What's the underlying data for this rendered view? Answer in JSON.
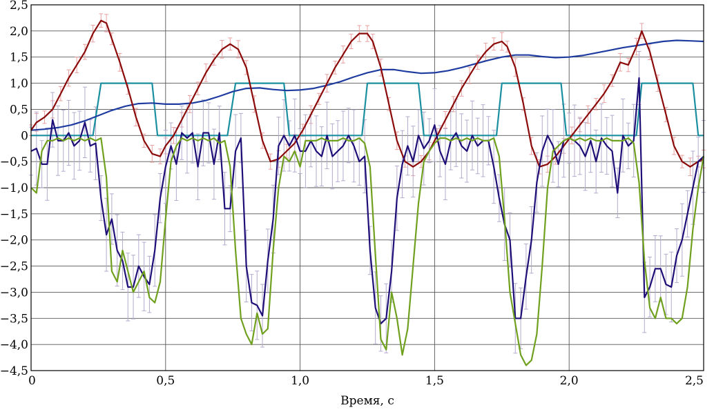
{
  "chart_data": {
    "type": "line",
    "title": "",
    "xlabel": "Время, с",
    "ylabel": "",
    "xlim": [
      0,
      2.5
    ],
    "ylim": [
      -4.5,
      2.5
    ],
    "grid": true,
    "legend": "none",
    "x_ticks": [
      0,
      0.5,
      1.0,
      1.5,
      2.0,
      2.5
    ],
    "x_tick_labels": [
      "0",
      "0,5",
      "1,0",
      "1,5",
      "2,0",
      "2,5"
    ],
    "y_ticks": [
      -4.5,
      -4.0,
      -3.5,
      -3.0,
      -2.5,
      -2.0,
      -1.5,
      -1.0,
      -0.5,
      0,
      0.5,
      1.0,
      1.5,
      2.0,
      2.5
    ],
    "y_tick_labels": [
      "−4,5",
      "−4,0",
      "−3,5",
      "−3,0",
      "−2,5",
      "−2,0",
      "−1,5",
      "−1,0",
      "−0,5",
      "0",
      "0,5",
      "1,0",
      "1,5",
      "2,0",
      "2,5"
    ],
    "series": [
      {
        "color": "#8b0a0a",
        "error_color": "#e8a0a0",
        "error": 0.17,
        "x": [
          0,
          0.02,
          0.05,
          0.08,
          0.11,
          0.14,
          0.17,
          0.2,
          0.23,
          0.26,
          0.28,
          0.3,
          0.33,
          0.36,
          0.39,
          0.42,
          0.45,
          0.48,
          0.5,
          0.53,
          0.56,
          0.59,
          0.62,
          0.65,
          0.68,
          0.71,
          0.74,
          0.77,
          0.8,
          0.83,
          0.86,
          0.89,
          0.92,
          0.95,
          0.98,
          1.01,
          1.04,
          1.07,
          1.1,
          1.13,
          1.16,
          1.19,
          1.22,
          1.25,
          1.27,
          1.3,
          1.33,
          1.36,
          1.39,
          1.42,
          1.45,
          1.48,
          1.51,
          1.54,
          1.57,
          1.6,
          1.63,
          1.66,
          1.69,
          1.72,
          1.75,
          1.77,
          1.8,
          1.83,
          1.86,
          1.89,
          1.92,
          1.95,
          1.98,
          2.01,
          2.04,
          2.07,
          2.1,
          2.13,
          2.16,
          2.19,
          2.22,
          2.25,
          2.27,
          2.3,
          2.33,
          2.36,
          2.39,
          2.42,
          2.45,
          2.48,
          2.5
        ],
        "y": [
          0.1,
          0.25,
          0.35,
          0.5,
          0.8,
          1.1,
          1.35,
          1.6,
          1.95,
          2.2,
          2.15,
          1.85,
          1.4,
          0.9,
          0.35,
          -0.1,
          -0.35,
          -0.4,
          -0.2,
          0.0,
          0.3,
          0.6,
          0.9,
          1.2,
          1.45,
          1.65,
          1.75,
          1.65,
          1.3,
          0.6,
          -0.1,
          -0.5,
          -0.45,
          -0.3,
          -0.15,
          0.1,
          0.4,
          0.7,
          1.0,
          1.3,
          1.55,
          1.8,
          1.95,
          1.95,
          1.8,
          1.3,
          0.6,
          -0.1,
          -0.5,
          -0.6,
          -0.5,
          -0.3,
          0.0,
          0.3,
          0.6,
          0.9,
          1.15,
          1.4,
          1.6,
          1.75,
          1.8,
          1.7,
          1.3,
          0.6,
          -0.2,
          -0.6,
          -0.55,
          -0.4,
          -0.2,
          0.0,
          0.2,
          0.4,
          0.6,
          0.8,
          1.05,
          1.4,
          1.35,
          1.7,
          2.0,
          1.6,
          1.0,
          0.4,
          -0.2,
          -0.5,
          -0.6,
          -0.5,
          -0.45
        ]
      },
      {
        "color": "#1e3ca0",
        "x": [
          0,
          0.05,
          0.1,
          0.15,
          0.2,
          0.25,
          0.3,
          0.35,
          0.4,
          0.45,
          0.5,
          0.55,
          0.6,
          0.65,
          0.7,
          0.75,
          0.8,
          0.85,
          0.9,
          0.95,
          1.0,
          1.05,
          1.1,
          1.15,
          1.2,
          1.25,
          1.3,
          1.35,
          1.4,
          1.45,
          1.5,
          1.55,
          1.6,
          1.65,
          1.7,
          1.75,
          1.8,
          1.85,
          1.9,
          1.95,
          2.0,
          2.05,
          2.1,
          2.15,
          2.2,
          2.25,
          2.3,
          2.35,
          2.4,
          2.45,
          2.5
        ],
        "y": [
          0.1,
          0.12,
          0.15,
          0.2,
          0.28,
          0.38,
          0.48,
          0.56,
          0.61,
          0.62,
          0.6,
          0.6,
          0.62,
          0.67,
          0.75,
          0.84,
          0.9,
          0.91,
          0.88,
          0.86,
          0.87,
          0.9,
          0.96,
          1.03,
          1.12,
          1.2,
          1.26,
          1.26,
          1.22,
          1.19,
          1.2,
          1.24,
          1.3,
          1.37,
          1.44,
          1.5,
          1.54,
          1.54,
          1.51,
          1.49,
          1.5,
          1.53,
          1.58,
          1.63,
          1.68,
          1.72,
          1.76,
          1.8,
          1.82,
          1.81,
          1.8
        ]
      },
      {
        "color": "#1a8fa0",
        "x": [
          0,
          0.23,
          0.26,
          0.45,
          0.47,
          0.73,
          0.76,
          0.94,
          0.96,
          1.23,
          1.25,
          1.44,
          1.46,
          1.73,
          1.75,
          1.97,
          1.99,
          2.25,
          2.27,
          2.46,
          2.48,
          2.5
        ],
        "y": [
          0,
          0,
          1,
          1,
          0,
          0,
          1,
          1,
          0,
          0,
          1,
          1,
          0,
          0,
          1,
          1,
          0,
          0,
          1,
          1,
          0,
          0
        ]
      },
      {
        "color": "#1e0f78",
        "error_color": "#b4aacd",
        "error": 0.7,
        "x": [
          0,
          0.02,
          0.04,
          0.06,
          0.08,
          0.1,
          0.12,
          0.14,
          0.16,
          0.18,
          0.2,
          0.22,
          0.24,
          0.26,
          0.28,
          0.3,
          0.32,
          0.34,
          0.36,
          0.38,
          0.4,
          0.42,
          0.44,
          0.46,
          0.48,
          0.5,
          0.52,
          0.54,
          0.56,
          0.58,
          0.6,
          0.62,
          0.64,
          0.66,
          0.68,
          0.7,
          0.72,
          0.74,
          0.76,
          0.78,
          0.8,
          0.82,
          0.84,
          0.86,
          0.88,
          0.9,
          0.92,
          0.94,
          0.96,
          0.98,
          1.0,
          1.02,
          1.04,
          1.06,
          1.08,
          1.1,
          1.12,
          1.14,
          1.16,
          1.18,
          1.2,
          1.22,
          1.24,
          1.26,
          1.28,
          1.3,
          1.32,
          1.34,
          1.36,
          1.38,
          1.4,
          1.42,
          1.44,
          1.46,
          1.48,
          1.5,
          1.52,
          1.54,
          1.56,
          1.58,
          1.6,
          1.62,
          1.64,
          1.66,
          1.68,
          1.7,
          1.72,
          1.74,
          1.76,
          1.78,
          1.8,
          1.82,
          1.84,
          1.86,
          1.88,
          1.9,
          1.92,
          1.94,
          1.96,
          1.98,
          2.0,
          2.02,
          2.04,
          2.06,
          2.08,
          2.1,
          2.12,
          2.14,
          2.16,
          2.18,
          2.2,
          2.22,
          2.24,
          2.26,
          2.28,
          2.3,
          2.32,
          2.34,
          2.36,
          2.38,
          2.4,
          2.42,
          2.44,
          2.46,
          2.48,
          2.5
        ],
        "y": [
          -0.3,
          -0.25,
          -0.55,
          -0.55,
          0.3,
          -0.1,
          -0.1,
          0.05,
          -0.2,
          -0.1,
          0.25,
          -0.2,
          -0.15,
          -1.2,
          -1.9,
          -1.6,
          -2.2,
          -2.4,
          -2.9,
          -2.9,
          -2.5,
          -2.7,
          -2.85,
          -2.2,
          -1.2,
          -0.6,
          -0.2,
          -0.55,
          0.05,
          -0.05,
          0.05,
          -0.6,
          0.05,
          0.05,
          -0.55,
          0.05,
          -1.4,
          -1.4,
          -0.3,
          -0.05,
          -2.5,
          -3.2,
          -3.25,
          -3.45,
          -2.4,
          -1.6,
          -0.2,
          0.0,
          -0.2,
          0.0,
          -0.3,
          -0.3,
          -0.1,
          -0.3,
          -0.4,
          0.0,
          -0.4,
          -0.3,
          -0.2,
          0.0,
          -0.2,
          -0.5,
          -0.4,
          -2.2,
          -3.3,
          -3.6,
          -3.5,
          -2.6,
          -1.2,
          -0.55,
          -0.2,
          -0.5,
          0.0,
          -0.25,
          -0.1,
          0.2,
          -0.3,
          -0.55,
          -0.1,
          0.05,
          -0.2,
          -0.3,
          0.0,
          -0.2,
          -0.1,
          -0.1,
          -0.6,
          -1.2,
          -1.7,
          -2.0,
          -3.5,
          -3.5,
          -2.7,
          -2.0,
          -0.9,
          -0.3,
          0.0,
          -0.2,
          -0.55,
          -0.1,
          -0.05,
          -0.1,
          -0.2,
          -0.4,
          -0.1,
          -0.5,
          -0.05,
          -0.2,
          -0.3,
          -1.1,
          0.0,
          -0.2,
          -0.1,
          1.1,
          -3.1,
          -2.9,
          -2.55,
          -2.55,
          -2.85,
          -2.9,
          -2.3,
          -2.0,
          -1.5,
          -1.0,
          -0.5,
          -0.4
        ]
      },
      {
        "color": "#6fa01e",
        "x": [
          0,
          0.02,
          0.04,
          0.06,
          0.08,
          0.1,
          0.12,
          0.14,
          0.16,
          0.18,
          0.2,
          0.22,
          0.24,
          0.26,
          0.28,
          0.3,
          0.32,
          0.34,
          0.36,
          0.38,
          0.4,
          0.42,
          0.44,
          0.46,
          0.48,
          0.5,
          0.52,
          0.54,
          0.56,
          0.58,
          0.6,
          0.62,
          0.64,
          0.66,
          0.68,
          0.7,
          0.72,
          0.74,
          0.76,
          0.78,
          0.8,
          0.82,
          0.84,
          0.86,
          0.88,
          0.9,
          0.92,
          0.94,
          0.96,
          0.98,
          1.0,
          1.02,
          1.04,
          1.06,
          1.08,
          1.1,
          1.12,
          1.14,
          1.16,
          1.18,
          1.2,
          1.22,
          1.24,
          1.26,
          1.28,
          1.3,
          1.32,
          1.34,
          1.36,
          1.38,
          1.4,
          1.42,
          1.44,
          1.46,
          1.48,
          1.5,
          1.52,
          1.54,
          1.56,
          1.58,
          1.6,
          1.62,
          1.64,
          1.66,
          1.68,
          1.7,
          1.72,
          1.74,
          1.76,
          1.78,
          1.8,
          1.82,
          1.84,
          1.86,
          1.88,
          1.9,
          1.92,
          1.94,
          1.96,
          1.98,
          2.0,
          2.02,
          2.04,
          2.06,
          2.08,
          2.1,
          2.12,
          2.14,
          2.16,
          2.18,
          2.2,
          2.22,
          2.24,
          2.26,
          2.28,
          2.3,
          2.32,
          2.34,
          2.36,
          2.38,
          2.4,
          2.42,
          2.44,
          2.46,
          2.48,
          2.5
        ],
        "y": [
          -1.0,
          -1.1,
          -0.3,
          -0.1,
          -0.1,
          -0.05,
          -0.1,
          -0.05,
          -0.1,
          -0.05,
          -0.1,
          -0.05,
          -0.1,
          -0.05,
          -0.8,
          -2.6,
          -2.8,
          -2.2,
          -2.6,
          -3.0,
          -2.8,
          -2.6,
          -3.1,
          -3.2,
          -2.8,
          -1.6,
          -0.5,
          -0.2,
          -0.05,
          -0.1,
          -0.05,
          -0.1,
          -0.05,
          -0.1,
          -0.05,
          -0.15,
          -0.1,
          -0.6,
          -2.2,
          -3.5,
          -3.8,
          -4.0,
          -3.4,
          -3.8,
          -3.7,
          -2.2,
          -1.0,
          -0.4,
          -0.5,
          -0.3,
          -0.6,
          -0.1,
          -0.1,
          -0.1,
          -0.05,
          -0.1,
          -0.1,
          -0.1,
          -0.05,
          -0.1,
          -0.1,
          -0.05,
          -0.15,
          -0.6,
          -2.3,
          -3.9,
          -4.1,
          -3.0,
          -3.5,
          -4.2,
          -3.7,
          -2.5,
          -1.3,
          -0.5,
          -0.3,
          -0.15,
          -0.05,
          -0.05,
          -0.1,
          -0.05,
          -0.1,
          -0.05,
          -0.1,
          -0.05,
          -0.1,
          -0.1,
          -0.05,
          -0.4,
          -1.6,
          -3.0,
          -3.6,
          -4.2,
          -4.4,
          -4.3,
          -3.8,
          -2.5,
          -1.0,
          -0.3,
          -0.2,
          -0.1,
          -0.05,
          -0.1,
          -0.05,
          -0.1,
          -0.05,
          -0.1,
          -0.1,
          -0.05,
          -0.1,
          -0.1,
          -0.1,
          -0.05,
          -0.15,
          -0.9,
          -2.4,
          -3.3,
          -3.5,
          -3.1,
          -3.5,
          -3.5,
          -3.6,
          -3.5,
          -2.9,
          -1.8,
          -1.0,
          -0.4
        ]
      }
    ]
  }
}
